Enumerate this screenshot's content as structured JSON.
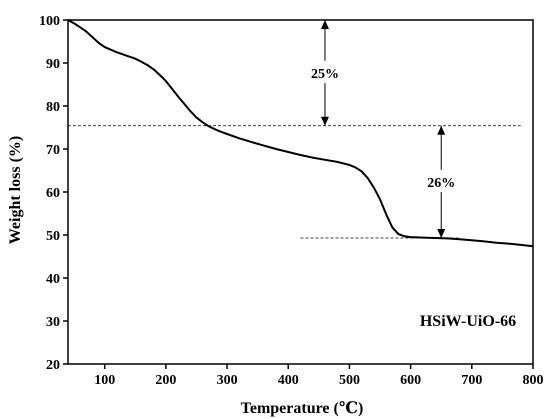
{
  "chart_data": {
    "type": "line",
    "title": "",
    "xlabel": "Temperature (℃)",
    "ylabel": "Weight loss (%)",
    "xlim": [
      40,
      800
    ],
    "ylim": [
      20,
      100
    ],
    "xticks": [
      100,
      200,
      300,
      400,
      500,
      600,
      700,
      800
    ],
    "yticks": [
      20,
      30,
      40,
      50,
      60,
      70,
      80,
      90,
      100
    ],
    "grid": false,
    "legend": "none",
    "line_color": "#000000",
    "series": [
      {
        "x": [
          40,
          50,
          60,
          70,
          80,
          90,
          100,
          110,
          120,
          130,
          140,
          150,
          160,
          170,
          180,
          190,
          200,
          210,
          220,
          230,
          240,
          250,
          260,
          270,
          280,
          290,
          300,
          320,
          340,
          360,
          380,
          400,
          420,
          440,
          460,
          480,
          500,
          510,
          520,
          530,
          540,
          550,
          560,
          570,
          580,
          590,
          600,
          620,
          640,
          660,
          680,
          700,
          720,
          740,
          760,
          780,
          800
        ],
        "values": [
          100,
          99.2,
          98.3,
          97.3,
          96.0,
          94.7,
          93.7,
          93.1,
          92.5,
          92.0,
          91.5,
          91.0,
          90.3,
          89.5,
          88.5,
          87.2,
          85.8,
          84.0,
          82.2,
          80.5,
          78.8,
          77.3,
          76.2,
          75.3,
          74.6,
          74.0,
          73.5,
          72.5,
          71.6,
          70.8,
          70.0,
          69.3,
          68.6,
          68.0,
          67.5,
          67.0,
          66.3,
          65.7,
          64.8,
          63.2,
          61.0,
          58.3,
          54.8,
          51.8,
          50.2,
          49.7,
          49.5,
          49.4,
          49.3,
          49.2,
          49.0,
          48.8,
          48.5,
          48.2,
          48.0,
          47.7,
          47.4
        ]
      }
    ],
    "annotations": [
      {
        "text": "25%",
        "from_y": 100,
        "to_y": 75.4,
        "x": 460,
        "line_x": [
          40,
          600
        ]
      },
      {
        "text": "26%",
        "from_y": 75.4,
        "to_y": 49.3,
        "x": 650,
        "line_x": [
          40,
          780
        ]
      },
      {
        "text": "",
        "y": 49.3,
        "line_x": [
          420,
          680
        ]
      }
    ],
    "sample_label": "HSiW-UiO-66"
  }
}
